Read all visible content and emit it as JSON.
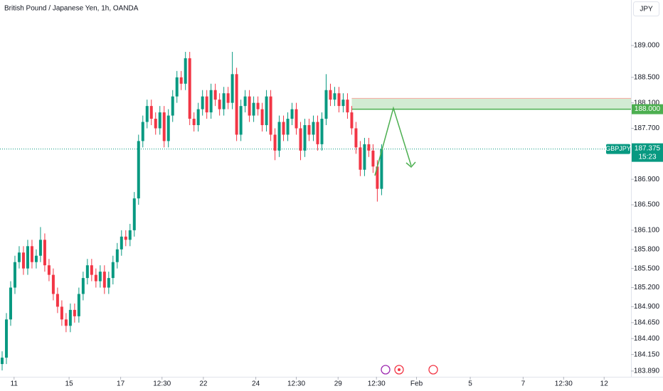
{
  "chart_data": {
    "type": "candlestick",
    "title": "British Pound / Japanese Yen, 1h, OANDA",
    "currency": "JPY",
    "symbol": "GBPJPY",
    "countdown": "15:23",
    "last_price": 187.375,
    "up_color": "#089981",
    "down_color": "#f23645",
    "zone": {
      "low": 188,
      "high": 188.17,
      "low_label": "188.000",
      "start_x": 82,
      "color": "#4caf50"
    },
    "ylim": [
      183.8,
      189.714
    ],
    "yticks": [
      {
        "value": 189,
        "label": "189.000"
      },
      {
        "value": 188.5,
        "label": "188.500"
      },
      {
        "value": 188.1,
        "label": "188.100"
      },
      {
        "value": 187.7,
        "label": "187.700"
      },
      {
        "value": 186.9,
        "label": "186.900"
      },
      {
        "value": 186.5,
        "label": "186.500"
      },
      {
        "value": 186.1,
        "label": "186.100"
      },
      {
        "value": 185.8,
        "label": "185.800"
      },
      {
        "value": 185.5,
        "label": "185.500"
      },
      {
        "value": 185.2,
        "label": "185.200"
      },
      {
        "value": 184.9,
        "label": "184.900"
      },
      {
        "value": 184.65,
        "label": "184.650"
      },
      {
        "value": 184.4,
        "label": "184.400"
      },
      {
        "value": 184.15,
        "label": "184.150"
      },
      {
        "value": 183.89,
        "label": "183.890"
      }
    ],
    "xlim": [
      -0.5,
      147.5
    ],
    "xticks": [
      {
        "value": 2.8,
        "label": "11"
      },
      {
        "value": 15.7,
        "label": "15"
      },
      {
        "value": 27.8,
        "label": "17"
      },
      {
        "value": 37.5,
        "label": "12:30"
      },
      {
        "value": 47.2,
        "label": "22"
      },
      {
        "value": 59.5,
        "label": "24"
      },
      {
        "value": 69,
        "label": "12:30"
      },
      {
        "value": 78.8,
        "label": "29"
      },
      {
        "value": 87.8,
        "label": "12:30"
      },
      {
        "value": 97.2,
        "label": "Feb"
      },
      {
        "value": 109.8,
        "label": "5"
      },
      {
        "value": 122.2,
        "label": "7"
      },
      {
        "value": 131.7,
        "label": "12:30"
      },
      {
        "value": 141.2,
        "label": "12"
      }
    ],
    "grid": false,
    "open": [
      184.0,
      184.1,
      184.7,
      185.2,
      185.6,
      185.75,
      185.5,
      185.85,
      185.6,
      185.7,
      185.95,
      185.55,
      185.4,
      185.1,
      184.9,
      184.7,
      184.6,
      184.85,
      184.75,
      185.1,
      185.35,
      185.55,
      185.4,
      185.3,
      185.45,
      185.2,
      185.35,
      185.6,
      185.8,
      186.0,
      185.95,
      186.1,
      186.6,
      187.5,
      187.8,
      188.05,
      187.85,
      187.7,
      187.95,
      187.5,
      187.9,
      188.2,
      188.5,
      188.4,
      188.8,
      187.85,
      187.75,
      188.0,
      188.2,
      187.95,
      188.3,
      188.15,
      188.0,
      188.25,
      188.1,
      188.55,
      187.6,
      188.05,
      188.2,
      187.9,
      188.1,
      188.0,
      187.75,
      188.2,
      187.6,
      187.35,
      187.8,
      187.6,
      187.85,
      188.0,
      187.7,
      187.35,
      187.75,
      187.6,
      187.8,
      187.45,
      187.85,
      188.3,
      188.15,
      188.25,
      188.05,
      188.15,
      187.95,
      187.7,
      187.4,
      187.05,
      187.45,
      187.35,
      187.1,
      186.75
    ],
    "high": [
      184.2,
      184.8,
      185.3,
      185.7,
      185.85,
      185.85,
      185.95,
      185.95,
      185.8,
      186.15,
      186.05,
      185.65,
      185.5,
      185.2,
      185.0,
      184.8,
      184.95,
      184.95,
      185.2,
      185.45,
      185.65,
      185.65,
      185.5,
      185.55,
      185.55,
      185.45,
      185.7,
      185.9,
      186.1,
      186.1,
      186.2,
      186.7,
      187.6,
      187.9,
      188.15,
      188.15,
      187.95,
      188.05,
      188.05,
      188.0,
      188.3,
      188.6,
      188.6,
      188.9,
      188.9,
      187.95,
      188.1,
      188.3,
      188.3,
      188.4,
      188.4,
      188.25,
      188.35,
      188.35,
      188.9,
      188.65,
      188.15,
      188.3,
      188.3,
      188.2,
      188.2,
      188.1,
      188.3,
      188.3,
      187.7,
      187.9,
      187.9,
      187.95,
      188.1,
      188.1,
      187.8,
      187.85,
      187.85,
      187.9,
      187.9,
      187.95,
      188.55,
      188.4,
      188.35,
      188.35,
      188.25,
      188.25,
      188.05,
      187.8,
      187.5,
      187.55,
      187.55,
      187.45,
      187.2,
      187.45
    ],
    "low": [
      183.9,
      184.0,
      184.6,
      185.1,
      185.5,
      185.4,
      185.4,
      185.5,
      185.5,
      185.6,
      185.45,
      185.3,
      185.0,
      184.8,
      184.6,
      184.5,
      184.5,
      184.65,
      184.65,
      185.0,
      185.25,
      185.3,
      185.2,
      185.2,
      185.1,
      185.1,
      185.25,
      185.5,
      185.7,
      185.85,
      185.85,
      186.0,
      186.5,
      187.4,
      187.7,
      187.75,
      187.6,
      187.6,
      187.4,
      187.4,
      187.8,
      188.1,
      188.3,
      188.3,
      187.75,
      187.65,
      187.65,
      187.9,
      187.85,
      187.85,
      188.05,
      187.9,
      187.9,
      188.0,
      188.0,
      187.5,
      187.5,
      187.95,
      187.8,
      187.8,
      187.9,
      187.65,
      187.65,
      187.5,
      187.2,
      187.25,
      187.5,
      187.5,
      187.75,
      187.6,
      187.2,
      187.25,
      187.5,
      187.5,
      187.35,
      187.35,
      187.75,
      188.05,
      188.05,
      187.95,
      187.95,
      187.85,
      187.6,
      187.3,
      186.95,
      186.95,
      187.25,
      187.0,
      186.55,
      186.65
    ],
    "close": [
      184.1,
      184.7,
      185.2,
      185.6,
      185.75,
      185.5,
      185.85,
      185.6,
      185.7,
      185.95,
      185.55,
      185.4,
      185.1,
      184.9,
      184.7,
      184.6,
      184.85,
      184.75,
      185.1,
      185.35,
      185.55,
      185.4,
      185.3,
      185.45,
      185.2,
      185.35,
      185.6,
      185.8,
      186.0,
      185.95,
      186.1,
      186.6,
      187.5,
      187.8,
      188.05,
      187.85,
      187.7,
      187.95,
      187.5,
      187.9,
      188.2,
      188.5,
      188.4,
      188.8,
      187.85,
      187.75,
      188.0,
      188.2,
      187.95,
      188.3,
      188.15,
      188.0,
      188.25,
      188.1,
      188.55,
      187.6,
      188.05,
      188.2,
      187.9,
      188.1,
      188.0,
      187.75,
      188.2,
      187.6,
      187.35,
      187.8,
      187.6,
      187.85,
      188.0,
      187.7,
      187.35,
      187.75,
      187.6,
      187.8,
      187.45,
      187.85,
      188.3,
      188.15,
      188.25,
      188.05,
      188.15,
      187.95,
      187.7,
      187.4,
      187.05,
      187.45,
      187.35,
      187.1,
      186.75,
      187.375
    ]
  }
}
